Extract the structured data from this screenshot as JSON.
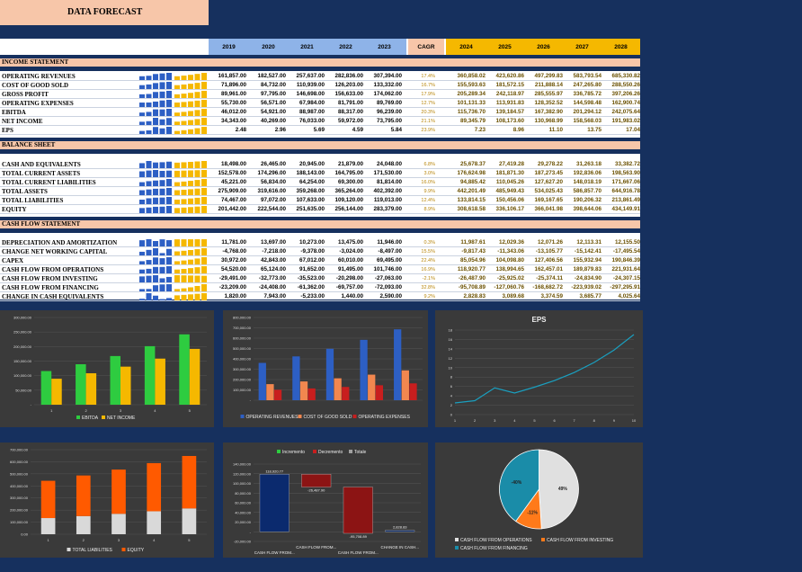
{
  "title": "DATA FORECAST",
  "years_hist": [
    "2019",
    "2020",
    "2021",
    "2022",
    "2023"
  ],
  "cagr_label": "CAGR",
  "years_fc": [
    "2024",
    "2025",
    "2026",
    "2027",
    "2028"
  ],
  "sections": [
    {
      "name": "INCOME STATEMENT",
      "rows": [
        {
          "label": "OPERATING REVENUES",
          "hist": [
            "161,857.00",
            "182,527.00",
            "257,637.00",
            "282,836.00",
            "307,394.00"
          ],
          "cagr": "17.4%",
          "fc": [
            "360,858.02",
            "423,620.86",
            "497,299.83",
            "583,793.54",
            "685,330.82"
          ]
        },
        {
          "label": "COST OF GOOD SOLD",
          "hist": [
            "71,896.00",
            "84,732.00",
            "110,939.00",
            "126,203.00",
            "133,332.00"
          ],
          "cagr": "16.7%",
          "fc": [
            "155,593.63",
            "181,572.15",
            "211,888.14",
            "247,265.80",
            "288,550.26"
          ]
        },
        {
          "label": "GROSS PROFIT",
          "hist": [
            "89,961.00",
            "97,795.00",
            "146,698.00",
            "156,633.00",
            "174,062.00"
          ],
          "cagr": "17.9%",
          "fc": [
            "205,289.34",
            "242,118.97",
            "285,555.97",
            "336,785.72",
            "397,206.26"
          ]
        },
        {
          "label": "OPERATING EXPENSES",
          "hist": [
            "55,730.00",
            "56,571.00",
            "67,984.00",
            "81,791.00",
            "89,769.00"
          ],
          "cagr": "12.7%",
          "fc": [
            "101,131.33",
            "113,931.83",
            "128,352.52",
            "144,598.48",
            "162,900.74"
          ]
        },
        {
          "label": "EBITDA",
          "hist": [
            "46,012.00",
            "54,921.00",
            "88,987.00",
            "88,317.00",
            "96,239.00"
          ],
          "cagr": "20.3%",
          "fc": [
            "115,736.70",
            "139,184.57",
            "167,382.90",
            "201,294.12",
            "242,075.64"
          ]
        },
        {
          "label": "NET INCOME",
          "hist": [
            "34,343.00",
            "40,269.00",
            "76,033.00",
            "59,972.00",
            "73,795.00"
          ],
          "cagr": "21.1%",
          "fc": [
            "89,345.79",
            "108,173.60",
            "130,968.99",
            "158,568.03",
            "191,983.02"
          ]
        },
        {
          "label": "EPS",
          "hist": [
            "2.48",
            "2.96",
            "5.69",
            "4.59",
            "5.84"
          ],
          "cagr": "23.9%",
          "fc": [
            "7.23",
            "8.96",
            "11.10",
            "13.75",
            "17.04"
          ]
        }
      ]
    },
    {
      "name": "BALANCE SHEET",
      "rows": [
        {
          "label": "CASH AND EQUIVALENTS",
          "hist": [
            "18,498.00",
            "26,465.00",
            "20,945.00",
            "21,879.00",
            "24,048.00"
          ],
          "cagr": "6.8%",
          "fc": [
            "25,678.37",
            "27,419.28",
            "29,278.22",
            "31,263.18",
            "33,382.72"
          ]
        },
        {
          "label": "TOTAL CURRENT ASSETS",
          "hist": [
            "152,578.00",
            "174,296.00",
            "188,143.00",
            "164,795.00",
            "171,530.00"
          ],
          "cagr": "3.0%",
          "fc": [
            "176,624.98",
            "181,871.30",
            "187,273.45",
            "192,836.06",
            "198,563.90"
          ]
        },
        {
          "label": "TOTAL CURRENT LIABILITIES",
          "hist": [
            "45,221.00",
            "56,834.00",
            "64,254.00",
            "69,300.00",
            "81,814.00"
          ],
          "cagr": "16.0%",
          "fc": [
            "94,885.42",
            "110,045.26",
            "127,627.20",
            "148,018.19",
            "171,667.06"
          ]
        },
        {
          "label": "TOTAL ASSETS",
          "hist": [
            "275,909.00",
            "319,616.00",
            "359,268.00",
            "365,264.00",
            "402,392.00"
          ],
          "cagr": "9.9%",
          "fc": [
            "442,201.49",
            "485,949.43",
            "534,025.43",
            "586,857.70",
            "644,916.78"
          ]
        },
        {
          "label": "TOTAL LIABILITIES",
          "hist": [
            "74,467.00",
            "97,072.00",
            "107,633.00",
            "109,120.00",
            "119,013.00"
          ],
          "cagr": "12.4%",
          "fc": [
            "133,814.15",
            "150,456.06",
            "169,167.65",
            "190,206.32",
            "213,861.49"
          ]
        },
        {
          "label": "EQUITY",
          "hist": [
            "201,442.00",
            "222,544.00",
            "251,635.00",
            "256,144.00",
            "283,379.00"
          ],
          "cagr": "8.9%",
          "fc": [
            "308,618.58",
            "336,106.17",
            "366,041.98",
            "398,644.06",
            "434,149.91"
          ]
        }
      ]
    },
    {
      "name": "CASH FLOW STATEMENT",
      "rows": [
        {
          "label": "DEPRECIATION AND AMORTIZATION",
          "hist": [
            "11,781.00",
            "13,697.00",
            "10,273.00",
            "13,475.00",
            "11,946.00"
          ],
          "cagr": "0.3%",
          "fc": [
            "11,987.61",
            "12,029.36",
            "12,071.26",
            "12,113.31",
            "12,155.50"
          ]
        },
        {
          "label": "CHANGE NET WORKING CAPITAL",
          "hist": [
            "-4,768.00",
            "-7,218.00",
            "-9,378.00",
            "-3,024.00",
            "-8,497.00"
          ],
          "cagr": "15.5%",
          "fc": [
            "-9,817.43",
            "-11,343.06",
            "-13,105.77",
            "-15,142.41",
            "-17,495.54"
          ]
        },
        {
          "label": "CAPEX",
          "hist": [
            "30,972.00",
            "42,843.00",
            "67,012.00",
            "60,010.00",
            "69,495.00"
          ],
          "cagr": "22.4%",
          "fc": [
            "85,054.96",
            "104,098.80",
            "127,406.56",
            "155,932.94",
            "190,846.39"
          ]
        },
        {
          "label": "CASH FLOW FROM OPERATIONS",
          "hist": [
            "54,520.00",
            "65,124.00",
            "91,652.00",
            "91,495.00",
            "101,746.00"
          ],
          "cagr": "16.9%",
          "fc": [
            "118,920.77",
            "138,994.65",
            "162,457.01",
            "189,879.83",
            "221,931.64"
          ]
        },
        {
          "label": "CASH FLOW FROM INVESTING",
          "hist": [
            "-29,491.00",
            "-32,773.00",
            "-35,523.00",
            "-20,298.00",
            "-27,063.00"
          ],
          "cagr": "-2.1%",
          "fc": [
            "-26,487.90",
            "-25,925.02",
            "-25,374.11",
            "-24,834.90",
            "-24,307.15"
          ]
        },
        {
          "label": "CASH FLOW FROM FINANCING",
          "hist": [
            "-23,209.00",
            "-24,408.00",
            "-61,362.00",
            "-69,757.00",
            "-72,093.00"
          ],
          "cagr": "32.8%",
          "fc": [
            "-95,708.89",
            "-127,060.76",
            "-168,682.72",
            "-223,939.02",
            "-297,295.91"
          ]
        },
        {
          "label": "CHANGE IN CASH EQUIVALENTS",
          "hist": [
            "1,820.00",
            "7,943.00",
            "-5,233.00",
            "1,440.00",
            "2,590.00"
          ],
          "cagr": "9.2%",
          "fc": [
            "2,828.83",
            "3,089.68",
            "3,374.59",
            "3,685.77",
            "4,025.64"
          ]
        }
      ]
    }
  ],
  "chart_data": [
    {
      "type": "bar",
      "categories": [
        "1",
        "2",
        "3",
        "4",
        "5"
      ],
      "series": [
        {
          "name": "EBITDA",
          "values": [
            115736.7,
            139184.57,
            167382.9,
            201294.12,
            242075.64
          ],
          "color": "#2ecc40"
        },
        {
          "name": "NET INCOME",
          "values": [
            89345.79,
            108173.6,
            130968.99,
            158568.03,
            191983.02
          ],
          "color": "#f5b800"
        }
      ],
      "ylim": [
        0,
        300000
      ],
      "yticks": [
        "-",
        "50,000.00",
        "100,000.00",
        "150,000.00",
        "200,000.00",
        "250,000.00",
        "300,000.00"
      ],
      "legend": "bottom"
    },
    {
      "type": "bar",
      "categories": [
        "",
        "",
        "",
        "",
        ""
      ],
      "series": [
        {
          "name": "OPERATING REVENUES",
          "values": [
            360858.02,
            423620.86,
            497299.83,
            583793.54,
            685330.82
          ],
          "color": "#2d5fc4"
        },
        {
          "name": "COST OF GOOD SOLD",
          "values": [
            155593.63,
            181572.15,
            211888.14,
            247265.8,
            288550.26
          ],
          "color": "#f2874f"
        },
        {
          "name": "OPERATING EXPENSES",
          "values": [
            101131.33,
            113931.83,
            128352.52,
            144598.48,
            162900.74
          ],
          "color": "#c81e1e"
        }
      ],
      "ylim": [
        0,
        800000
      ],
      "yticks": [
        "-",
        "100,000.00",
        "200,000.00",
        "300,000.00",
        "400,000.00",
        "500,000.00",
        "600,000.00",
        "700,000.00",
        "800,000.00"
      ],
      "legend": "bottom"
    },
    {
      "type": "line",
      "title": "EPS",
      "x": [
        "1",
        "2",
        "3",
        "4",
        "5",
        "6",
        "7",
        "8",
        "9",
        "10"
      ],
      "values": [
        2.48,
        2.96,
        5.69,
        4.59,
        5.84,
        7.23,
        8.96,
        11.1,
        13.75,
        17.04
      ],
      "ylim": [
        0,
        18
      ],
      "yticks": [
        "0",
        "2",
        "4",
        "6",
        "8",
        "10",
        "12",
        "14",
        "16",
        "18"
      ]
    },
    {
      "type": "bar",
      "stacked": true,
      "categories": [
        "1",
        "2",
        "3",
        "4",
        "5"
      ],
      "series": [
        {
          "name": "TOTAL LIABILITIES",
          "values": [
            133814.15,
            150456.06,
            169167.65,
            190206.32,
            213861.49
          ],
          "color": "#d9d9d9"
        },
        {
          "name": "EQUITY",
          "values": [
            308618.58,
            336106.17,
            366041.98,
            398644.06,
            434149.91
          ],
          "color": "#ff5a00"
        }
      ],
      "ylim": [
        0,
        700000
      ],
      "yticks": [
        "0.00",
        "100,000.00",
        "200,000.00",
        "300,000.00",
        "400,000.00",
        "500,000.00",
        "600,000.00",
        "700,000.00"
      ],
      "legend": "bottom"
    },
    {
      "type": "waterfall",
      "legend_items": [
        "Incremento",
        "Decremento",
        "Totale"
      ],
      "categories": [
        "CASH FLOW FROM...",
        "CASH FLOW FROM...",
        "CASH FLOW FROM...",
        "CHANGE IN CASH..."
      ],
      "values": [
        118920.77,
        -26487.9,
        -95708.89,
        2828.83
      ],
      "labels": [
        "118,920.77",
        "-26,487.90",
        "-95,708.89",
        "2,828.83"
      ],
      "ylim": [
        -20000,
        140000
      ],
      "yticks": [
        "-20,000.00",
        "-",
        "20,000.00",
        "40,000.00",
        "60,000.00",
        "80,000.00",
        "100,000.00",
        "120,000.00",
        "140,000.00"
      ]
    },
    {
      "type": "pie",
      "series": [
        {
          "name": "CASH FLOW FROM OPERATIONS",
          "pct": 49,
          "label": "49%",
          "color": "#e0e0e0"
        },
        {
          "name": "CASH FLOW FROM INVESTING",
          "pct": 11,
          "label": "-11%",
          "color": "#ff7a1a"
        },
        {
          "name": "CASH FLOW FROM FINANCING",
          "pct": 40,
          "label": "-40%",
          "color": "#1a8ca8"
        }
      ],
      "legend": "bottom"
    }
  ]
}
